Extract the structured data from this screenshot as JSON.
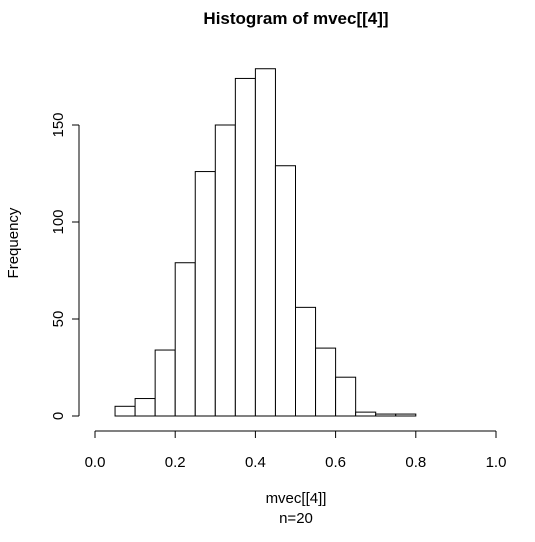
{
  "chart_data": {
    "type": "bar",
    "title": "Histogram of mvec[[4]]",
    "xlabel": "mvec[[4]]",
    "subtitle": "n=20",
    "ylabel": "Frequency",
    "xlim": [
      0.0,
      1.0
    ],
    "ylim": [
      0,
      180
    ],
    "xticks": [
      "0.0",
      "0.2",
      "0.4",
      "0.6",
      "0.8",
      "1.0"
    ],
    "yticks": [
      "0",
      "50",
      "100",
      "150"
    ],
    "grid": false,
    "bins": [
      {
        "start": 0.05,
        "end": 0.1,
        "count": 5
      },
      {
        "start": 0.1,
        "end": 0.15,
        "count": 9
      },
      {
        "start": 0.15,
        "end": 0.2,
        "count": 34
      },
      {
        "start": 0.2,
        "end": 0.25,
        "count": 79
      },
      {
        "start": 0.25,
        "end": 0.3,
        "count": 126
      },
      {
        "start": 0.3,
        "end": 0.35,
        "count": 150
      },
      {
        "start": 0.35,
        "end": 0.4,
        "count": 174
      },
      {
        "start": 0.4,
        "end": 0.45,
        "count": 179
      },
      {
        "start": 0.45,
        "end": 0.5,
        "count": 129
      },
      {
        "start": 0.5,
        "end": 0.55,
        "count": 56
      },
      {
        "start": 0.55,
        "end": 0.6,
        "count": 35
      },
      {
        "start": 0.6,
        "end": 0.65,
        "count": 20
      },
      {
        "start": 0.65,
        "end": 0.7,
        "count": 2
      },
      {
        "start": 0.7,
        "end": 0.75,
        "count": 1
      },
      {
        "start": 0.75,
        "end": 0.8,
        "count": 1
      }
    ]
  }
}
